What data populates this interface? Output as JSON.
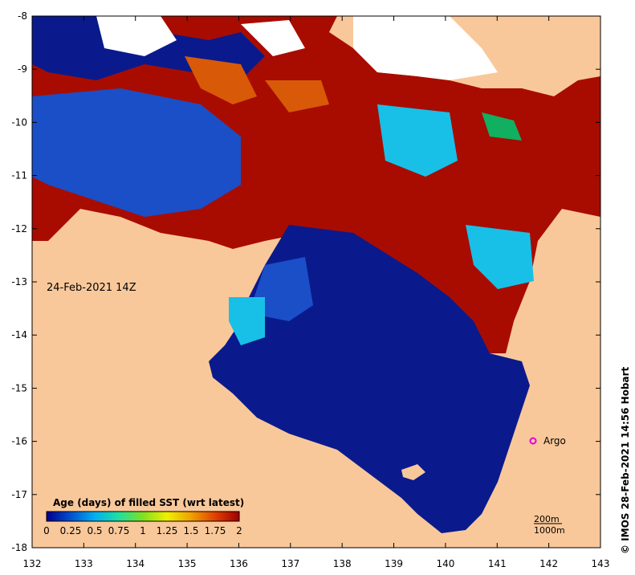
{
  "map": {
    "date_label": "24-Feb-2021 14Z",
    "credit": "© IMOS 28-Feb-2021 14:56 Hobart",
    "argo_label": "Argo",
    "scale_labels": [
      "200m",
      "1000m"
    ],
    "lon_ticks": [
      "132",
      "133",
      "134",
      "135",
      "136",
      "137",
      "138",
      "139",
      "140",
      "141",
      "142",
      "143"
    ],
    "lat_ticks": [
      "-8",
      "-9",
      "-10",
      "-11",
      "-12",
      "-13",
      "-14",
      "-15",
      "-16",
      "-17",
      "-18"
    ],
    "land_color": "#f9c89a",
    "ocean_colors": {
      "fresh": "#0a1a8c",
      "blue": "#1a4fc8",
      "cyan": "#18c0e8",
      "green": "#10b060",
      "orange": "#d85a08",
      "red": "#a80c00",
      "nodata": "#ffffff"
    }
  },
  "legend": {
    "title": "Age (days) of filled SST (wrt latest)",
    "ticks": [
      "0",
      "0.25",
      "0.5",
      "0.75",
      "1",
      "1.25",
      "1.5",
      "1.75",
      "2"
    ],
    "colors": [
      "#00008c",
      "#0050d0",
      "#00b0f0",
      "#20e0a0",
      "#80e020",
      "#f0f000",
      "#f0a000",
      "#e04000",
      "#a00000"
    ]
  }
}
